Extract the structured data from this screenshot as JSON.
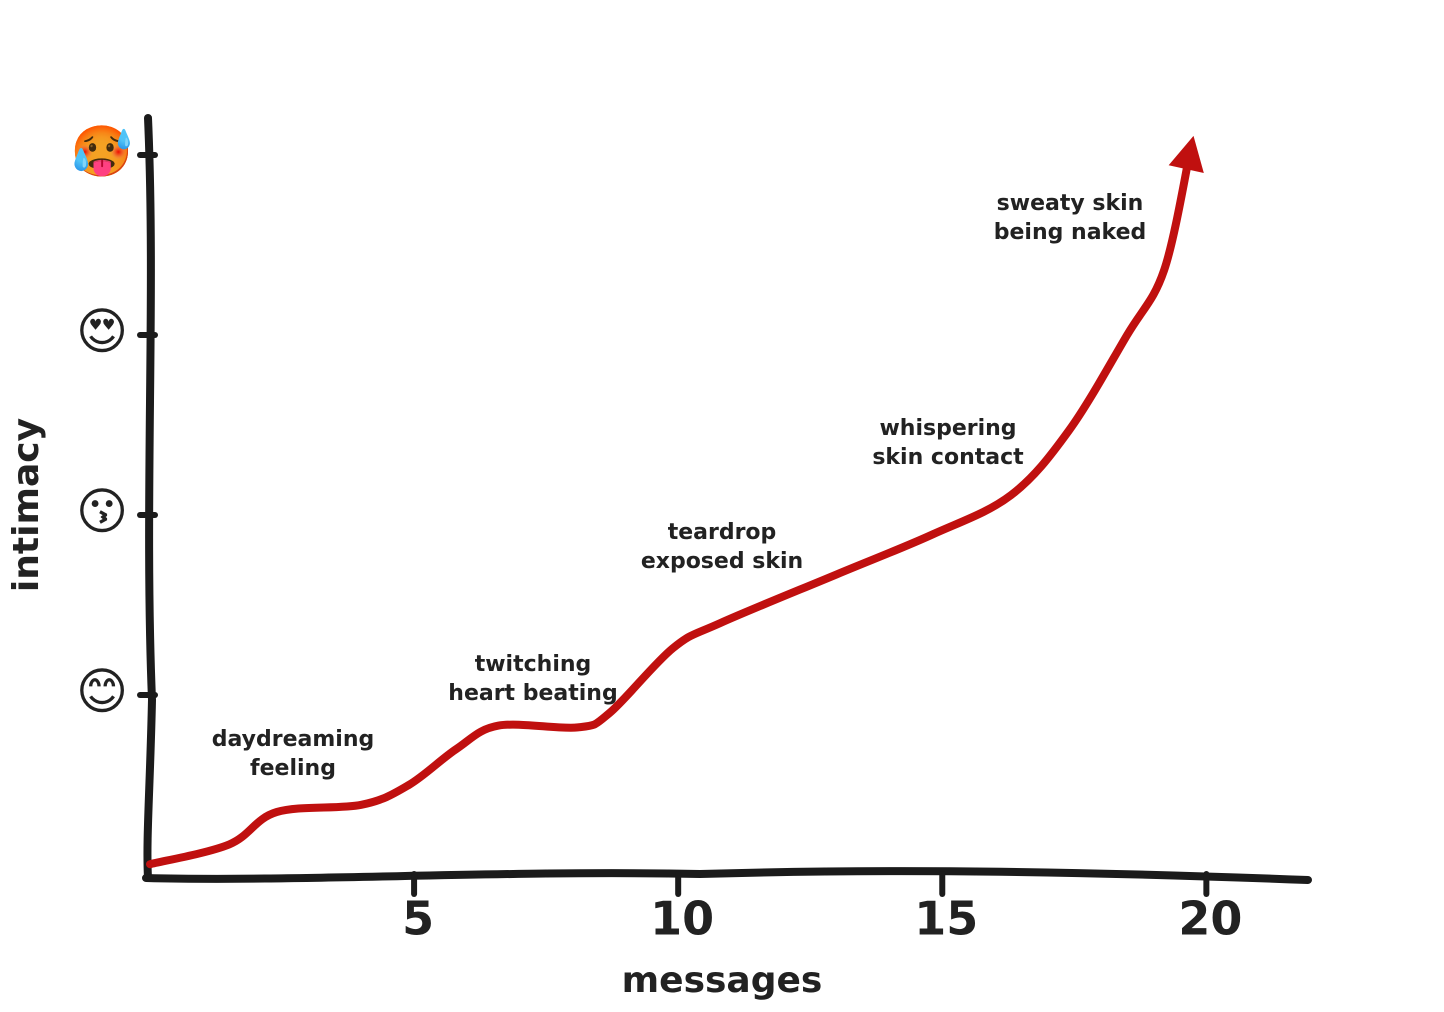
{
  "chart_data": {
    "type": "line",
    "xlabel": "messages",
    "ylabel": "intimacy",
    "x": [
      0,
      1.5,
      2.4,
      4.0,
      4.9,
      5.8,
      6.6,
      8.1,
      8.7,
      9.9,
      10.8,
      13.0,
      14.8,
      16.3,
      17.4,
      18.5,
      19.2,
      19.7
    ],
    "series": [
      {
        "color": "#c0100f",
        "values": [
          0.06,
          0.17,
          0.35,
          0.39,
          0.5,
          0.7,
          0.83,
          0.82,
          0.9,
          1.26,
          1.4,
          1.67,
          1.89,
          2.11,
          2.47,
          3.0,
          3.36,
          4.03
        ]
      }
    ],
    "xlim": [
      0,
      22
    ],
    "ylim": [
      0,
      4.2
    ],
    "xticks": [
      5,
      10,
      15,
      20
    ],
    "yticks": [
      {
        "value": 1,
        "label": "😊"
      },
      {
        "value": 2,
        "label": "😗"
      },
      {
        "value": 3,
        "label": "😍"
      },
      {
        "value": 4,
        "label": "🥵"
      }
    ],
    "annotations": [
      [
        "daydreaming",
        "feeling"
      ],
      [
        "twitching",
        "heart beating"
      ],
      [
        "teardrop",
        "exposed skin"
      ],
      [
        "whispering",
        "skin contact"
      ],
      [
        "sweaty skin",
        "being naked"
      ]
    ]
  }
}
